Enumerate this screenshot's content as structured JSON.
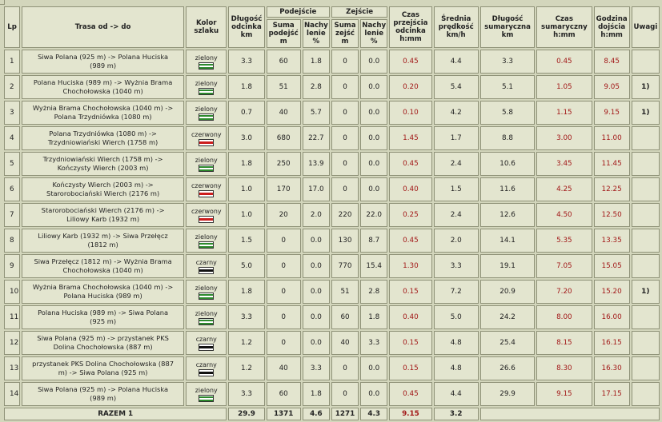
{
  "headers": {
    "lp": "Lp",
    "trasa": "Trasa od -> do",
    "kolor": "Kolor szlaku",
    "dlugosc_odcinka": "Długość odcinka km",
    "podejscie": "Podejście",
    "suma_podejsc": "Suma podejść m",
    "nachylenie_podejscie": "Nachy lenie %",
    "zejscie": "Zejście",
    "suma_zejsc": "Suma zejść m",
    "nachylenie_zejscie": "Nachy lenie %",
    "czas_przejscia": "Czas przejścia odcinka h:mm",
    "srednia_predkosc": "Średnia prędkość km/h",
    "dlugosc_sumaryczna": "Długość sumaryczna km",
    "czas_sumaryczny": "Czas sumaryczny h:mm",
    "godzina_dojscia": "Godzina dojścia h:mm",
    "uwagi": "Uwagi"
  },
  "rows": [
    {
      "lp": "1",
      "route_a": "Siwa Polana (925 m) -> Polana Huciska",
      "route_b": "(989 m)",
      "kolor": "zielony",
      "dlugosc": "3.3",
      "suma_pod": "60",
      "nach_pod": "1.8",
      "suma_zej": "0",
      "nach_zej": "0.0",
      "czas": "0.45",
      "predkosc": "4.4",
      "dl_sum": "3.3",
      "czas_sum": "0.45",
      "godzina": "8.45",
      "uwagi": ""
    },
    {
      "lp": "2",
      "route_a": "Polana Huciska (989 m) -> Wyżnia Brama",
      "route_b": "Chochołowska (1040 m)",
      "kolor": "zielony",
      "dlugosc": "1.8",
      "suma_pod": "51",
      "nach_pod": "2.8",
      "suma_zej": "0",
      "nach_zej": "0.0",
      "czas": "0.20",
      "predkosc": "5.4",
      "dl_sum": "5.1",
      "czas_sum": "1.05",
      "godzina": "9.05",
      "uwagi": "1)"
    },
    {
      "lp": "3",
      "route_a": "Wyżnia Brama Chochołowska (1040 m) ->",
      "route_b": "Polana Trzydniówka (1080 m)",
      "kolor": "zielony",
      "dlugosc": "0.7",
      "suma_pod": "40",
      "nach_pod": "5.7",
      "suma_zej": "0",
      "nach_zej": "0.0",
      "czas": "0.10",
      "predkosc": "4.2",
      "dl_sum": "5.8",
      "czas_sum": "1.15",
      "godzina": "9.15",
      "uwagi": "1)"
    },
    {
      "lp": "4",
      "route_a": "Polana Trzydniówka (1080 m) ->",
      "route_b": "Trzydniowiański Wierch (1758 m)",
      "kolor": "czerwony",
      "dlugosc": "3.0",
      "suma_pod": "680",
      "nach_pod": "22.7",
      "suma_zej": "0",
      "nach_zej": "0.0",
      "czas": "1.45",
      "predkosc": "1.7",
      "dl_sum": "8.8",
      "czas_sum": "3.00",
      "godzina": "11.00",
      "uwagi": ""
    },
    {
      "lp": "5",
      "route_a": "Trzydniowiański Wierch (1758 m) ->",
      "route_b": "Kończysty Wierch (2003 m)",
      "kolor": "zielony",
      "dlugosc": "1.8",
      "suma_pod": "250",
      "nach_pod": "13.9",
      "suma_zej": "0",
      "nach_zej": "0.0",
      "czas": "0.45",
      "predkosc": "2.4",
      "dl_sum": "10.6",
      "czas_sum": "3.45",
      "godzina": "11.45",
      "uwagi": ""
    },
    {
      "lp": "6",
      "route_a": "Kończysty Wierch (2003 m) ->",
      "route_b": "Starorobociański Wierch (2176 m)",
      "kolor": "czerwony",
      "dlugosc": "1.0",
      "suma_pod": "170",
      "nach_pod": "17.0",
      "suma_zej": "0",
      "nach_zej": "0.0",
      "czas": "0.40",
      "predkosc": "1.5",
      "dl_sum": "11.6",
      "czas_sum": "4.25",
      "godzina": "12.25",
      "uwagi": ""
    },
    {
      "lp": "7",
      "route_a": "Starorobociański Wierch (2176 m) ->",
      "route_b": "Liliowy Karb (1932 m)",
      "kolor": "czerwony",
      "dlugosc": "1.0",
      "suma_pod": "20",
      "nach_pod": "2.0",
      "suma_zej": "220",
      "nach_zej": "22.0",
      "czas": "0.25",
      "predkosc": "2.4",
      "dl_sum": "12.6",
      "czas_sum": "4.50",
      "godzina": "12.50",
      "uwagi": ""
    },
    {
      "lp": "8",
      "route_a": "Liliowy Karb (1932 m) -> Siwa Przełęcz",
      "route_b": "(1812 m)",
      "kolor": "zielony",
      "dlugosc": "1.5",
      "suma_pod": "0",
      "nach_pod": "0.0",
      "suma_zej": "130",
      "nach_zej": "8.7",
      "czas": "0.45",
      "predkosc": "2.0",
      "dl_sum": "14.1",
      "czas_sum": "5.35",
      "godzina": "13.35",
      "uwagi": ""
    },
    {
      "lp": "9",
      "route_a": "Siwa Przełęcz (1812 m) -> Wyżnia Brama",
      "route_b": "Chochołowska (1040 m)",
      "kolor": "czarny",
      "dlugosc": "5.0",
      "suma_pod": "0",
      "nach_pod": "0.0",
      "suma_zej": "770",
      "nach_zej": "15.4",
      "czas": "1.30",
      "predkosc": "3.3",
      "dl_sum": "19.1",
      "czas_sum": "7.05",
      "godzina": "15.05",
      "uwagi": ""
    },
    {
      "lp": "10",
      "route_a": "Wyżnia Brama Chochołowska (1040 m) ->",
      "route_b": "Polana Huciska (989 m)",
      "kolor": "zielony",
      "dlugosc": "1.8",
      "suma_pod": "0",
      "nach_pod": "0.0",
      "suma_zej": "51",
      "nach_zej": "2.8",
      "czas": "0.15",
      "predkosc": "7.2",
      "dl_sum": "20.9",
      "czas_sum": "7.20",
      "godzina": "15.20",
      "uwagi": "1)"
    },
    {
      "lp": "11",
      "route_a": "Polana Huciska (989 m) -> Siwa Polana",
      "route_b": "(925 m)",
      "kolor": "zielony",
      "dlugosc": "3.3",
      "suma_pod": "0",
      "nach_pod": "0.0",
      "suma_zej": "60",
      "nach_zej": "1.8",
      "czas": "0.40",
      "predkosc": "5.0",
      "dl_sum": "24.2",
      "czas_sum": "8.00",
      "godzina": "16.00",
      "uwagi": ""
    },
    {
      "lp": "12",
      "route_a": "Siwa Polana (925 m) -> przystanek PKS",
      "route_b": "Dolina Chochołowska (887 m)",
      "kolor": "czarny",
      "dlugosc": "1.2",
      "suma_pod": "0",
      "nach_pod": "0.0",
      "suma_zej": "40",
      "nach_zej": "3.3",
      "czas": "0.15",
      "predkosc": "4.8",
      "dl_sum": "25.4",
      "czas_sum": "8.15",
      "godzina": "16.15",
      "uwagi": ""
    },
    {
      "lp": "13",
      "route_a": "przystanek PKS Dolina Chochołowska (887",
      "route_b": "m) -> Siwa Polana (925 m)",
      "kolor": "czarny",
      "dlugosc": "1.2",
      "suma_pod": "40",
      "nach_pod": "3.3",
      "suma_zej": "0",
      "nach_zej": "0.0",
      "czas": "0.15",
      "predkosc": "4.8",
      "dl_sum": "26.6",
      "czas_sum": "8.30",
      "godzina": "16.30",
      "uwagi": ""
    },
    {
      "lp": "14",
      "route_a": "Siwa Polana (925 m) -> Polana Huciska",
      "route_b": "(989 m)",
      "kolor": "zielony",
      "dlugosc": "3.3",
      "suma_pod": "60",
      "nach_pod": "1.8",
      "suma_zej": "0",
      "nach_zej": "0.0",
      "czas": "0.45",
      "predkosc": "4.4",
      "dl_sum": "29.9",
      "czas_sum": "9.15",
      "godzina": "17.15",
      "uwagi": ""
    }
  ],
  "footer": {
    "label": "RAZEM 1",
    "dlugosc": "29.9",
    "suma_pod": "1371",
    "nach_pod": "4.6",
    "suma_zej": "1271",
    "nach_zej": "4.3",
    "czas": "9.15",
    "predkosc": "3.2"
  },
  "colors": {
    "background": "#d3d6bc",
    "cell": "#e3e5cf",
    "border": "#8f9278",
    "time_red": "#a21818",
    "trail_green": "#2d8a2d",
    "trail_red": "#cc1d1d",
    "trail_black": "#111111"
  }
}
